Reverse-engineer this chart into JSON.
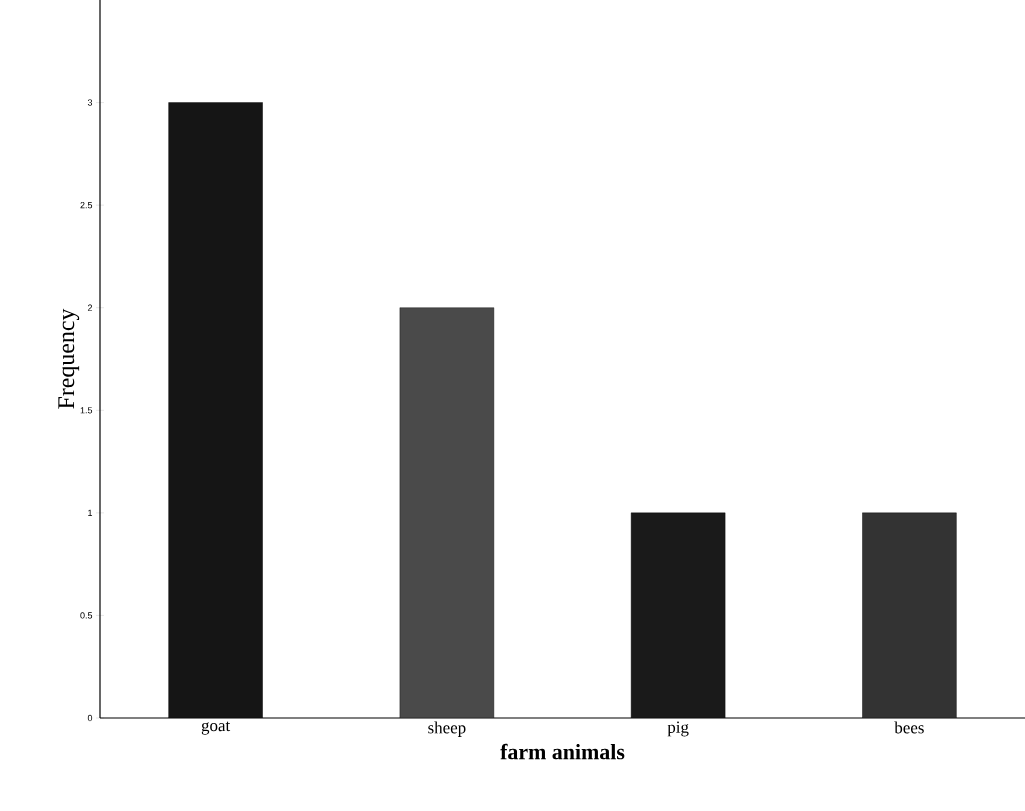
{
  "chart_data": {
    "type": "bar",
    "xlabel": "farm animals",
    "ylabel": "Frequency",
    "categories": [
      "goat",
      "sheep",
      "pig",
      "bees"
    ],
    "values": [
      3,
      2,
      1,
      1
    ],
    "colors": [
      "#151515",
      "#4a4a4a",
      "#1a1a1a",
      "#333333"
    ],
    "ylim": [
      0,
      3.5
    ],
    "yticks": [
      0,
      0.5,
      1,
      1.5,
      2,
      2.5,
      3
    ],
    "grid": false
  }
}
